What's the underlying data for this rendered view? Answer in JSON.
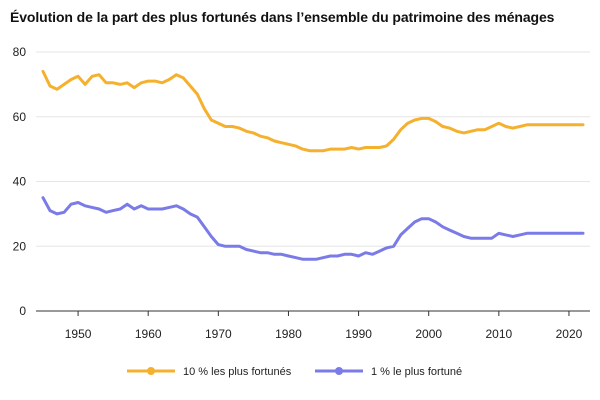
{
  "chart_data": {
    "type": "line",
    "title": "Évolution de la part des plus fortunés dans l’ensemble du patrimoine des ménages",
    "xlabel": "",
    "ylabel": "",
    "xlim": [
      1944,
      2023
    ],
    "ylim": [
      0,
      80
    ],
    "x_ticks": [
      "1950",
      "1960",
      "1970",
      "1980",
      "1990",
      "2000",
      "2010",
      "2020"
    ],
    "y_ticks": [
      "0",
      "20",
      "40",
      "60",
      "80"
    ],
    "grid": "horizontal",
    "legend_position": "bottom",
    "x": [
      1945,
      1946,
      1947,
      1948,
      1949,
      1950,
      1951,
      1952,
      1953,
      1954,
      1955,
      1956,
      1957,
      1958,
      1959,
      1960,
      1961,
      1962,
      1963,
      1964,
      1965,
      1966,
      1967,
      1968,
      1969,
      1970,
      1971,
      1972,
      1973,
      1974,
      1975,
      1976,
      1977,
      1978,
      1979,
      1980,
      1981,
      1982,
      1983,
      1984,
      1985,
      1986,
      1987,
      1988,
      1989,
      1990,
      1991,
      1992,
      1993,
      1994,
      1995,
      1996,
      1997,
      1998,
      1999,
      2000,
      2001,
      2002,
      2003,
      2004,
      2005,
      2006,
      2007,
      2008,
      2009,
      2010,
      2011,
      2012,
      2013,
      2014,
      2015,
      2016,
      2017,
      2018,
      2019,
      2020,
      2021,
      2022
    ],
    "series": [
      {
        "name": "10 % les plus fortunés",
        "color": "#f5b02e",
        "values": [
          74,
          69.5,
          68.5,
          70,
          71.5,
          72.5,
          70,
          72.5,
          73,
          70.5,
          70.5,
          70,
          70.5,
          69,
          70.5,
          71,
          71,
          70.5,
          71.5,
          73,
          72,
          69.5,
          67,
          62.5,
          59,
          58,
          57,
          57,
          56.5,
          55.5,
          55,
          54,
          53.5,
          52.5,
          52,
          51.5,
          51,
          50,
          49.5,
          49.5,
          49.5,
          50,
          50,
          50,
          50.5,
          50,
          50.5,
          50.5,
          50.5,
          51,
          53,
          56,
          58,
          59,
          59.5,
          59.5,
          58.5,
          57,
          56.5,
          55.5,
          55,
          55.5,
          56,
          56,
          57,
          58,
          57,
          56.5,
          57,
          57.5,
          57.5,
          57.5,
          57.5,
          57.5,
          57.5,
          57.5,
          57.5,
          57.5
        ]
      },
      {
        "name": "1 % le plus fortuné",
        "color": "#7b7be8",
        "values": [
          35,
          31,
          30,
          30.5,
          33,
          33.5,
          32.5,
          32,
          31.5,
          30.5,
          31,
          31.5,
          33,
          31.5,
          32.5,
          31.5,
          31.5,
          31.5,
          32,
          32.5,
          31.5,
          30,
          29,
          26,
          23,
          20.5,
          20,
          20,
          20,
          19,
          18.5,
          18,
          18,
          17.5,
          17.5,
          17,
          16.5,
          16,
          16,
          16,
          16.5,
          17,
          17,
          17.5,
          17.5,
          17,
          18,
          17.5,
          18.5,
          19.5,
          20,
          23.5,
          25.5,
          27.5,
          28.5,
          28.5,
          27.5,
          26,
          25,
          24,
          23,
          22.5,
          22.5,
          22.5,
          22.5,
          24,
          23.5,
          23,
          23.5,
          24,
          24,
          24,
          24,
          24,
          24,
          24,
          24,
          24
        ]
      }
    ]
  }
}
